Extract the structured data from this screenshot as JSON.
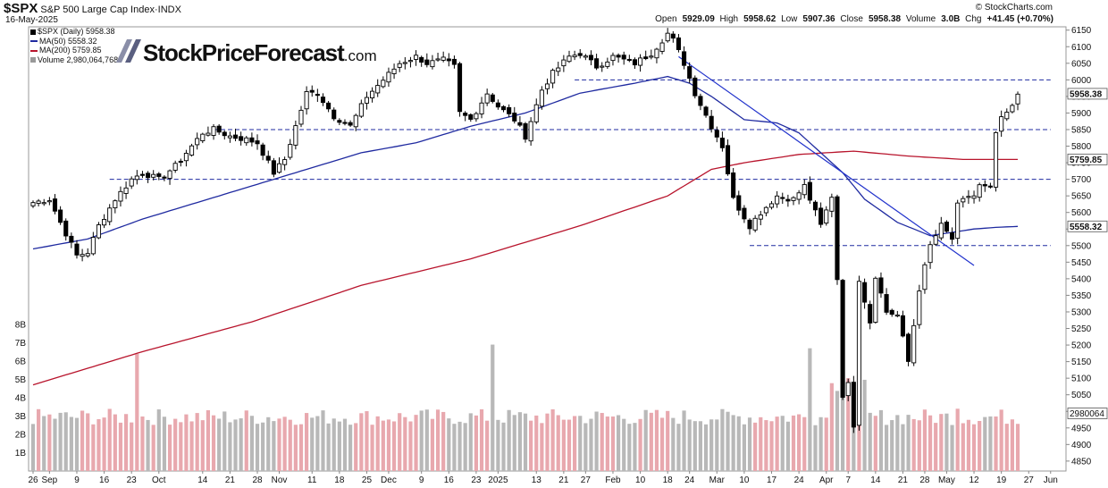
{
  "header": {
    "ticker": "$SPX",
    "name": "S&P 500 Large Cap Index",
    "exchange": "INDX",
    "date": "16-May-2025",
    "credit": "© StockCharts.com",
    "open_label": "Open",
    "open": "5929.09",
    "high_label": "High",
    "high": "5958.62",
    "low_label": "Low",
    "low": "5907.36",
    "close_label": "Close",
    "close": "5958.38",
    "volume_label": "Volume",
    "volume": "3.0B",
    "chg_label": "Chg",
    "chg": "+41.45 (+0.70%)"
  },
  "legend": {
    "price": "$SPX (Daily) 5958.38",
    "ma50": "MA(50) 5558.32",
    "ma200": "MA(200) 5759.85",
    "volume": "Volume 2,980,064,768"
  },
  "logo": {
    "text": "StockPriceForecast",
    "suffix": ".com"
  },
  "colors": {
    "ma50": "#1f2aa0",
    "ma200": "#b8142c",
    "support": "#1f2aa0",
    "trend": "#2233cc",
    "up_vol": "#e8a8ae",
    "down_vol": "#b8b8b8",
    "candle": "#000000"
  },
  "chart_data": {
    "type": "candlestick",
    "ylim": [
      4820,
      6160
    ],
    "y_ticks": [
      4850,
      4900,
      4950,
      5000,
      5050,
      5100,
      5150,
      5200,
      5250,
      5300,
      5350,
      5400,
      5450,
      5500,
      5550,
      5600,
      5650,
      5700,
      5750,
      5800,
      5850,
      5900,
      5950,
      6000,
      6050,
      6100,
      6150
    ],
    "volume_ticks": [
      "1B",
      "2B",
      "3B",
      "4B",
      "5B",
      "6B",
      "7B",
      "8B"
    ],
    "x_labels": [
      {
        "label": "26",
        "i": 0
      },
      {
        "label": "Sep",
        "i": 3
      },
      {
        "label": "9",
        "i": 8
      },
      {
        "label": "16",
        "i": 13
      },
      {
        "label": "23",
        "i": 18
      },
      {
        "label": "Oct",
        "i": 23
      },
      {
        "label": "14",
        "i": 31
      },
      {
        "label": "21",
        "i": 36
      },
      {
        "label": "28",
        "i": 41
      },
      {
        "label": "Nov",
        "i": 45
      },
      {
        "label": "11",
        "i": 51
      },
      {
        "label": "18",
        "i": 56
      },
      {
        "label": "25",
        "i": 61
      },
      {
        "label": "Dec",
        "i": 65
      },
      {
        "label": "9",
        "i": 71
      },
      {
        "label": "16",
        "i": 76
      },
      {
        "label": "23",
        "i": 81
      },
      {
        "label": "2025",
        "i": 85
      },
      {
        "label": "13",
        "i": 92
      },
      {
        "label": "21",
        "i": 97
      },
      {
        "label": "27",
        "i": 101
      },
      {
        "label": "Feb",
        "i": 106
      },
      {
        "label": "10",
        "i": 111
      },
      {
        "label": "18",
        "i": 116
      },
      {
        "label": "24",
        "i": 120
      },
      {
        "label": "Mar",
        "i": 125
      },
      {
        "label": "10",
        "i": 130
      },
      {
        "label": "17",
        "i": 135
      },
      {
        "label": "24",
        "i": 140
      },
      {
        "label": "Apr",
        "i": 145
      },
      {
        "label": "7",
        "i": 149
      },
      {
        "label": "14",
        "i": 154
      },
      {
        "label": "21",
        "i": 159
      },
      {
        "label": "28",
        "i": 163
      },
      {
        "label": "May",
        "i": 167
      },
      {
        "label": "12",
        "i": 172
      },
      {
        "label": "19",
        "i": 177
      },
      {
        "label": "27",
        "i": 182
      },
      {
        "label": "Jun",
        "i": 186
      }
    ],
    "price_anchors": [
      [
        0,
        5630
      ],
      [
        3,
        5640
      ],
      [
        5,
        5570
      ],
      [
        8,
        5470
      ],
      [
        10,
        5480
      ],
      [
        12,
        5560
      ],
      [
        15,
        5640
      ],
      [
        18,
        5700
      ],
      [
        20,
        5720
      ],
      [
        23,
        5700
      ],
      [
        26,
        5740
      ],
      [
        28,
        5780
      ],
      [
        31,
        5840
      ],
      [
        33,
        5850
      ],
      [
        36,
        5830
      ],
      [
        39,
        5820
      ],
      [
        41,
        5810
      ],
      [
        44,
        5720
      ],
      [
        46,
        5760
      ],
      [
        50,
        5960
      ],
      [
        52,
        5960
      ],
      [
        55,
        5890
      ],
      [
        58,
        5860
      ],
      [
        61,
        5950
      ],
      [
        64,
        6000
      ],
      [
        67,
        6050
      ],
      [
        70,
        6070
      ],
      [
        72,
        6050
      ],
      [
        75,
        6060
      ],
      [
        77,
        6040
      ],
      [
        78,
        5900
      ],
      [
        80,
        5880
      ],
      [
        83,
        5960
      ],
      [
        85,
        5920
      ],
      [
        88,
        5880
      ],
      [
        90,
        5830
      ],
      [
        93,
        5970
      ],
      [
        95,
        6020
      ],
      [
        98,
        6070
      ],
      [
        100,
        6080
      ],
      [
        103,
        6040
      ],
      [
        106,
        6070
      ],
      [
        110,
        6050
      ],
      [
        113,
        6080
      ],
      [
        116,
        6140
      ],
      [
        117,
        6120
      ],
      [
        119,
        6050
      ],
      [
        121,
        5960
      ],
      [
        124,
        5860
      ],
      [
        126,
        5800
      ],
      [
        128,
        5640
      ],
      [
        131,
        5560
      ],
      [
        133,
        5600
      ],
      [
        136,
        5650
      ],
      [
        139,
        5640
      ],
      [
        141,
        5680
      ],
      [
        144,
        5560
      ],
      [
        146,
        5650
      ],
      [
        147,
        5400
      ],
      [
        148,
        5050
      ],
      [
        149,
        5080
      ],
      [
        150,
        4960
      ],
      [
        151,
        5400
      ],
      [
        153,
        5270
      ],
      [
        154,
        5410
      ],
      [
        156,
        5300
      ],
      [
        158,
        5290
      ],
      [
        160,
        5150
      ],
      [
        162,
        5370
      ],
      [
        164,
        5500
      ],
      [
        166,
        5560
      ],
      [
        168,
        5520
      ],
      [
        169,
        5620
      ],
      [
        171,
        5650
      ],
      [
        172,
        5650
      ],
      [
        173,
        5680
      ],
      [
        175,
        5670
      ],
      [
        176,
        5840
      ],
      [
        177,
        5880
      ],
      [
        178,
        5900
      ],
      [
        179,
        5917
      ],
      [
        180,
        5958
      ]
    ],
    "ma50_anchors": [
      [
        0,
        5490
      ],
      [
        10,
        5520
      ],
      [
        20,
        5580
      ],
      [
        30,
        5630
      ],
      [
        40,
        5680
      ],
      [
        50,
        5730
      ],
      [
        60,
        5780
      ],
      [
        70,
        5810
      ],
      [
        80,
        5860
      ],
      [
        90,
        5900
      ],
      [
        100,
        5960
      ],
      [
        110,
        5990
      ],
      [
        116,
        6010
      ],
      [
        120,
        5990
      ],
      [
        124,
        5950
      ],
      [
        130,
        5880
      ],
      [
        136,
        5870
      ],
      [
        140,
        5840
      ],
      [
        144,
        5780
      ],
      [
        148,
        5720
      ],
      [
        152,
        5640
      ],
      [
        158,
        5570
      ],
      [
        164,
        5530
      ],
      [
        168,
        5540
      ],
      [
        172,
        5550
      ],
      [
        176,
        5555
      ],
      [
        180,
        5558
      ]
    ],
    "ma200_anchors": [
      [
        0,
        5080
      ],
      [
        20,
        5180
      ],
      [
        40,
        5270
      ],
      [
        60,
        5380
      ],
      [
        80,
        5460
      ],
      [
        100,
        5560
      ],
      [
        116,
        5650
      ],
      [
        124,
        5730
      ],
      [
        130,
        5750
      ],
      [
        140,
        5775
      ],
      [
        150,
        5785
      ],
      [
        160,
        5770
      ],
      [
        170,
        5760
      ],
      [
        180,
        5760
      ]
    ],
    "hlines": [
      {
        "y": 6000,
        "from": 99,
        "to": 186
      },
      {
        "y": 5850,
        "from": 33,
        "to": 186
      },
      {
        "y": 5700,
        "from": 14,
        "to": 186
      },
      {
        "y": 5500,
        "from": 131,
        "to": 186
      }
    ],
    "trendline": {
      "from": [
        118,
        6070
      ],
      "to": [
        172,
        5440
      ]
    },
    "right_labels": [
      {
        "value": "5958.38",
        "y": 5958
      },
      {
        "value": "5759.85",
        "y": 5760
      },
      {
        "value": "5558.32",
        "y": 5558
      }
    ],
    "volume_label": {
      "value": "2980064",
      "b": 3.0
    },
    "n_bars": 181,
    "x_max": 188
  }
}
